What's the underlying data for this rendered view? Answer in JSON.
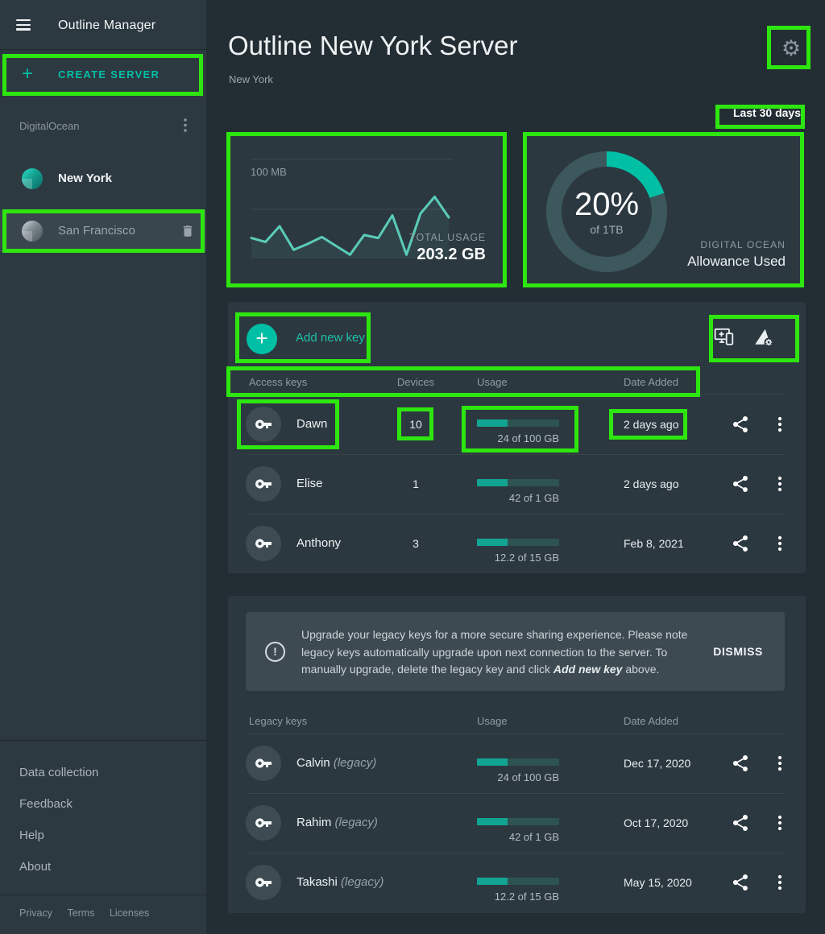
{
  "sidebar": {
    "title": "Outline Manager",
    "create_server": "CREATE SERVER",
    "group_label": "DigitalOcean",
    "servers": [
      {
        "name": "New York"
      },
      {
        "name": "San Francisco"
      }
    ],
    "links": [
      "Data collection",
      "Feedback",
      "Help",
      "About"
    ],
    "footer_links": [
      "Privacy",
      "Terms",
      "Licenses"
    ]
  },
  "header": {
    "title": "Outline New York Server",
    "subtitle": "New York",
    "period": "Last 30 days"
  },
  "usage_card": {
    "axis_label": "100 MB",
    "total_label": "TOTAL USAGE",
    "total_value": "203.2 GB"
  },
  "allowance_card": {
    "percent_label": "20%",
    "of_label": "of 1TB",
    "provider": "DIGITAL OCEAN",
    "label": "Allowance Used"
  },
  "chart_data": [
    {
      "type": "line",
      "title": "Total usage, last 30 days",
      "ylabel": "MB",
      "y_max_mb": 100,
      "gridlines_mb": [
        0,
        50,
        100
      ],
      "values_mb": [
        20,
        16,
        32,
        8,
        14,
        21,
        12,
        3,
        23,
        20,
        43,
        3,
        45,
        62,
        41
      ],
      "total_usage": "203.2 GB",
      "legend_position": "none"
    },
    {
      "type": "donut",
      "title": "Allowance Used",
      "percent": 20,
      "of": "1TB",
      "provider": "DIGITAL OCEAN"
    }
  ],
  "access_keys": {
    "add_label": "Add new key",
    "headers": [
      "Access keys",
      "Devices",
      "Usage",
      "Date Added"
    ],
    "bar_fill_pct": 37,
    "rows": [
      {
        "name": "Dawn",
        "devices": "10",
        "usage": "24 of 100 GB",
        "date": "2 days ago"
      },
      {
        "name": "Elise",
        "devices": "1",
        "usage": "42 of 1 GB",
        "date": "2 days ago"
      },
      {
        "name": "Anthony",
        "devices": "3",
        "usage": "12.2 of 15 GB",
        "date": "Feb 8, 2021"
      }
    ]
  },
  "legacy": {
    "notice_prefix": "Upgrade your legacy keys for a more secure sharing experience. Please note legacy keys automatically upgrade upon next connection to the server. To manually upgrade, delete the legacy key and click ",
    "notice_emphasis": "Add new key",
    "notice_suffix": " above.",
    "dismiss": "DISMISS",
    "headers": [
      "Legacy keys",
      "Usage",
      "Date Added"
    ],
    "legacy_tag": "(legacy)",
    "bar_fill_pct": 37,
    "rows": [
      {
        "name": "Calvin",
        "usage": "24 of 100 GB",
        "date": "Dec 17, 2020"
      },
      {
        "name": "Rahim",
        "usage": "42 of 1 GB",
        "date": "Oct 17, 2020"
      },
      {
        "name": "Takashi",
        "usage": "12.2 of 15 GB",
        "date": "May 15, 2020"
      }
    ]
  },
  "colors": {
    "accent": "#00bfa5",
    "chart_line": "#5accb8",
    "donut_track": "#3c585c",
    "bar_fill": "#12a493",
    "bar_track": "#2d5451",
    "annotation": "#2ee60f"
  }
}
